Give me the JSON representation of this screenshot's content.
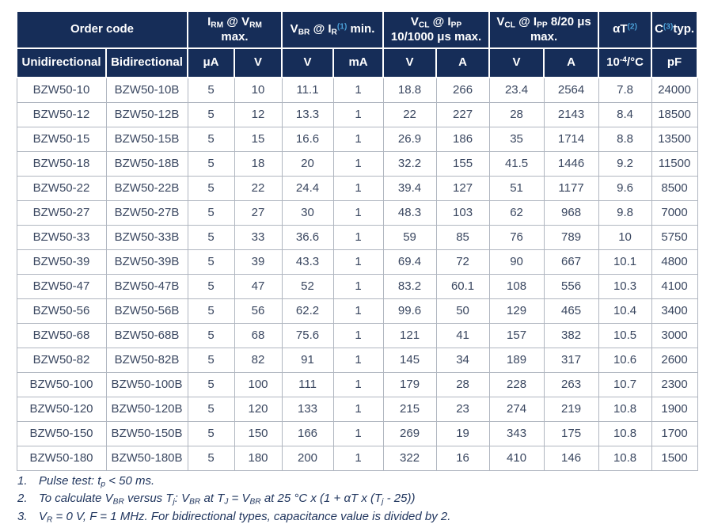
{
  "colors": {
    "header_bg": "#162d58",
    "header_text": "#ffffff",
    "superscript_blue": "#4a9fd6",
    "cell_text": "#3a4760",
    "grid_border": "#b0b6c0",
    "footnote_text": "#22375f"
  },
  "table": {
    "header_groups": [
      {
        "name": "order-code",
        "rich": [
          {
            "t": "Order code"
          }
        ]
      },
      {
        "name": "irm-at-vrm-max",
        "rich": [
          {
            "t": "I"
          },
          {
            "t": "RM",
            "s": "sub"
          },
          {
            "t": " @ V"
          },
          {
            "t": "RM",
            "s": "sub"
          },
          {
            "br": true
          },
          {
            "t": "max."
          }
        ]
      },
      {
        "name": "vbr-at-ir-min",
        "rich": [
          {
            "t": "V"
          },
          {
            "t": "BR",
            "s": "sub"
          },
          {
            "t": " @ I"
          },
          {
            "t": "R",
            "s": "sub"
          },
          {
            "t": "(1)",
            "s": "supblue"
          },
          {
            "t": " min."
          }
        ]
      },
      {
        "name": "vcl-at-ipp-10-1000",
        "rich": [
          {
            "t": "V"
          },
          {
            "t": "CL",
            "s": "sub"
          },
          {
            "t": " @ I"
          },
          {
            "t": "PP",
            "s": "sub"
          },
          {
            "br": true
          },
          {
            "t": "10/1000 μs max."
          }
        ]
      },
      {
        "name": "vcl-at-ipp-8-20",
        "rich": [
          {
            "t": "V"
          },
          {
            "t": "CL",
            "s": "sub"
          },
          {
            "t": " @ I"
          },
          {
            "t": "PP",
            "s": "sub"
          },
          {
            "t": " 8/20 μs"
          },
          {
            "br": true
          },
          {
            "t": "max."
          }
        ]
      },
      {
        "name": "alpha-t",
        "rich": [
          {
            "t": "αT"
          },
          {
            "t": "(2)",
            "s": "supblue"
          }
        ]
      },
      {
        "name": "c-typ",
        "rich": [
          {
            "t": "C"
          },
          {
            "t": "(3)",
            "s": "supblue"
          },
          {
            "t": "typ."
          }
        ]
      }
    ],
    "subheaders": [
      {
        "name": "unidirectional",
        "rich": [
          {
            "t": "Unidirectional"
          }
        ]
      },
      {
        "name": "bidirectional",
        "rich": [
          {
            "t": "Bidirectional"
          }
        ]
      },
      {
        "name": "unit-ua",
        "rich": [
          {
            "t": "μA"
          }
        ]
      },
      {
        "name": "unit-v-1",
        "rich": [
          {
            "t": "V"
          }
        ]
      },
      {
        "name": "unit-v-2",
        "rich": [
          {
            "t": "V"
          }
        ]
      },
      {
        "name": "unit-ma",
        "rich": [
          {
            "t": "mA"
          }
        ]
      },
      {
        "name": "unit-v-3",
        "rich": [
          {
            "t": "V"
          }
        ]
      },
      {
        "name": "unit-a-1",
        "rich": [
          {
            "t": "A"
          }
        ]
      },
      {
        "name": "unit-v-4",
        "rich": [
          {
            "t": "V"
          }
        ]
      },
      {
        "name": "unit-a-2",
        "rich": [
          {
            "t": "A"
          }
        ]
      },
      {
        "name": "unit-per-degc",
        "rich": [
          {
            "t": "10"
          },
          {
            "t": "-4",
            "s": "sup"
          },
          {
            "t": "/°C"
          }
        ]
      },
      {
        "name": "unit-pf",
        "rich": [
          {
            "t": "pF"
          }
        ]
      }
    ],
    "rows": [
      [
        "BZW50-10",
        "BZW50-10B",
        "5",
        "10",
        "11.1",
        "1",
        "18.8",
        "266",
        "23.4",
        "2564",
        "7.8",
        "24000"
      ],
      [
        "BZW50-12",
        "BZW50-12B",
        "5",
        "12",
        "13.3",
        "1",
        "22",
        "227",
        "28",
        "2143",
        "8.4",
        "18500"
      ],
      [
        "BZW50-15",
        "BZW50-15B",
        "5",
        "15",
        "16.6",
        "1",
        "26.9",
        "186",
        "35",
        "1714",
        "8.8",
        "13500"
      ],
      [
        "BZW50-18",
        "BZW50-18B",
        "5",
        "18",
        "20",
        "1",
        "32.2",
        "155",
        "41.5",
        "1446",
        "9.2",
        "11500"
      ],
      [
        "BZW50-22",
        "BZW50-22B",
        "5",
        "22",
        "24.4",
        "1",
        "39.4",
        "127",
        "51",
        "1177",
        "9.6",
        "8500"
      ],
      [
        "BZW50-27",
        "BZW50-27B",
        "5",
        "27",
        "30",
        "1",
        "48.3",
        "103",
        "62",
        "968",
        "9.8",
        "7000"
      ],
      [
        "BZW50-33",
        "BZW50-33B",
        "5",
        "33",
        "36.6",
        "1",
        "59",
        "85",
        "76",
        "789",
        "10",
        "5750"
      ],
      [
        "BZW50-39",
        "BZW50-39B",
        "5",
        "39",
        "43.3",
        "1",
        "69.4",
        "72",
        "90",
        "667",
        "10.1",
        "4800"
      ],
      [
        "BZW50-47",
        "BZW50-47B",
        "5",
        "47",
        "52",
        "1",
        "83.2",
        "60.1",
        "108",
        "556",
        "10.3",
        "4100"
      ],
      [
        "BZW50-56",
        "BZW50-56B",
        "5",
        "56",
        "62.2",
        "1",
        "99.6",
        "50",
        "129",
        "465",
        "10.4",
        "3400"
      ],
      [
        "BZW50-68",
        "BZW50-68B",
        "5",
        "68",
        "75.6",
        "1",
        "121",
        "41",
        "157",
        "382",
        "10.5",
        "3000"
      ],
      [
        "BZW50-82",
        "BZW50-82B",
        "5",
        "82",
        "91",
        "1",
        "145",
        "34",
        "189",
        "317",
        "10.6",
        "2600"
      ],
      [
        "BZW50-100",
        "BZW50-100B",
        "5",
        "100",
        "111",
        "1",
        "179",
        "28",
        "228",
        "263",
        "10.7",
        "2300"
      ],
      [
        "BZW50-120",
        "BZW50-120B",
        "5",
        "120",
        "133",
        "1",
        "215",
        "23",
        "274",
        "219",
        "10.8",
        "1900"
      ],
      [
        "BZW50-150",
        "BZW50-150B",
        "5",
        "150",
        "166",
        "1",
        "269",
        "19",
        "343",
        "175",
        "10.8",
        "1700"
      ],
      [
        "BZW50-180",
        "BZW50-180B",
        "5",
        "180",
        "200",
        "1",
        "322",
        "16",
        "410",
        "146",
        "10.8",
        "1500"
      ]
    ]
  },
  "footnotes": [
    {
      "num": "1.",
      "rich": [
        {
          "t": "Pulse test: t"
        },
        {
          "t": "p",
          "s": "sub"
        },
        {
          "t": " < 50 ms."
        }
      ]
    },
    {
      "num": "2.",
      "rich": [
        {
          "t": "To calculate V"
        },
        {
          "t": "BR",
          "s": "sub"
        },
        {
          "t": " versus T"
        },
        {
          "t": "j",
          "s": "sub"
        },
        {
          "t": ": V"
        },
        {
          "t": "BR",
          "s": "sub"
        },
        {
          "t": " at T"
        },
        {
          "t": "J",
          "s": "sub"
        },
        {
          "t": " = V"
        },
        {
          "t": "BR",
          "s": "sub"
        },
        {
          "t": " at 25 °C x (1 + αT x (T"
        },
        {
          "t": "j",
          "s": "sub"
        },
        {
          "t": " - 25))"
        }
      ]
    },
    {
      "num": "3.",
      "rich": [
        {
          "t": "V"
        },
        {
          "t": "R",
          "s": "sub"
        },
        {
          "t": " = 0 V, F = 1 MHz. For bidirectional types, capacitance value is divided by 2."
        }
      ]
    }
  ]
}
